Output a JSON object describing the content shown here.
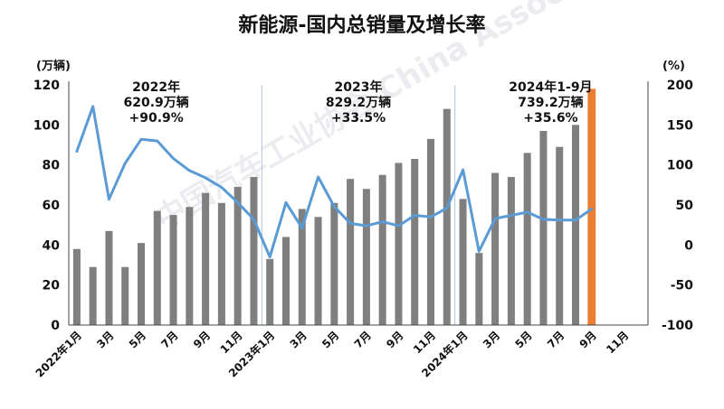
{
  "chart_data": {
    "type": "bar",
    "title": "新能源-国内总销量及增长率",
    "y_left_unit": "(万辆)",
    "y_right_unit": "(%)",
    "y_left_ticks": [
      "0",
      "20",
      "40",
      "60",
      "80",
      "100",
      "120"
    ],
    "y_right_ticks": [
      "-100",
      "-50",
      "0",
      "50",
      "100",
      "150",
      "200"
    ],
    "ylim_left": [
      0,
      120
    ],
    "ylim_right": [
      -100,
      200
    ],
    "x_tick_labels": [
      "2022年1月",
      "3月",
      "5月",
      "7月",
      "9月",
      "11月",
      "2023年1月",
      "3月",
      "5月",
      "7月",
      "9月",
      "11月",
      "2024年1月",
      "3月",
      "5月",
      "7月",
      "9月",
      "11月"
    ],
    "categories": [
      "2022-01",
      "2022-02",
      "2022-03",
      "2022-04",
      "2022-05",
      "2022-06",
      "2022-07",
      "2022-08",
      "2022-09",
      "2022-10",
      "2022-11",
      "2022-12",
      "2023-01",
      "2023-02",
      "2023-03",
      "2023-04",
      "2023-05",
      "2023-06",
      "2023-07",
      "2023-08",
      "2023-09",
      "2023-10",
      "2023-11",
      "2023-12",
      "2024-01",
      "2024-02",
      "2024-03",
      "2024-04",
      "2024-05",
      "2024-06",
      "2024-07",
      "2024-08",
      "2024-09",
      "2024-10",
      "2024-11",
      "2024-12"
    ],
    "series": [
      {
        "type": "bar",
        "axis": "left",
        "color": "#7f7f7f",
        "highlight_color": "#ed7d31",
        "highlight_index": 32,
        "values": [
          38,
          29,
          47,
          29,
          41,
          57,
          55,
          59,
          66,
          61,
          69,
          74,
          33,
          44,
          58,
          54,
          61,
          73,
          68,
          75,
          81,
          83,
          93,
          108,
          63,
          36,
          76,
          74,
          86,
          97,
          89,
          100,
          118,
          null,
          null,
          null
        ]
      },
      {
        "type": "line",
        "axis": "right",
        "color": "#5b9bd5",
        "values": [
          117,
          173,
          57,
          102,
          132,
          130,
          108,
          93,
          84,
          72,
          53,
          32,
          -15,
          53,
          21,
          85,
          48,
          27,
          24,
          29,
          24,
          37,
          35,
          46,
          94,
          -8,
          33,
          37,
          41,
          32,
          31,
          31,
          45,
          null,
          null,
          null
        ]
      }
    ],
    "annotations": [
      {
        "lines": [
          "2022年",
          "620.9万辆",
          "+90.9%"
        ]
      },
      {
        "lines": [
          "2023年",
          "829.2万辆",
          "+33.5%"
        ]
      },
      {
        "lines": [
          "2024年1-9月",
          "739.2万辆",
          "+35.6%"
        ]
      }
    ],
    "watermark": "中国汽车工业协会 China Association of Automobile Manufacturers",
    "grid": false,
    "legend": "none"
  }
}
